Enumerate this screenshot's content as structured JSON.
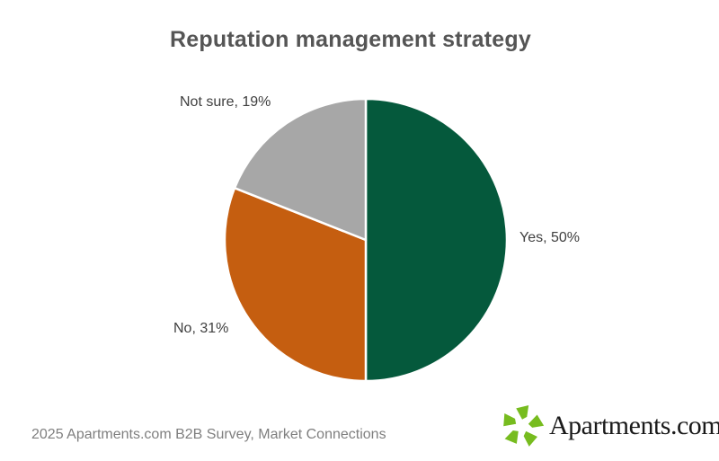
{
  "chart_data": {
    "type": "pie",
    "title": "Reputation management strategy",
    "slices": [
      {
        "label": "Yes",
        "value": 50,
        "color": "#05593C"
      },
      {
        "label": "No",
        "value": 31,
        "color": "#C55E10"
      },
      {
        "label": "Not sure",
        "value": 19,
        "color": "#A7A7A7"
      }
    ],
    "start_angle": "12-oclock",
    "direction": "clockwise",
    "label_format": "{label}, {value}%",
    "separator_color": "#FFFFFF",
    "legend": "none"
  },
  "footer": {
    "source": "2025 Apartments.com B2B Survey, Market Connections"
  },
  "logo": {
    "brand": "Apartments.com",
    "trademark": "™",
    "icon": "apartments-pinwheel-icon",
    "icon_color": "#77BC1F",
    "text_color": "#1A1A1A"
  },
  "colors": {
    "title_text": "#555555",
    "label_text": "#404040",
    "footer_text": "#7F7F7F",
    "background": "#FFFFFF"
  }
}
